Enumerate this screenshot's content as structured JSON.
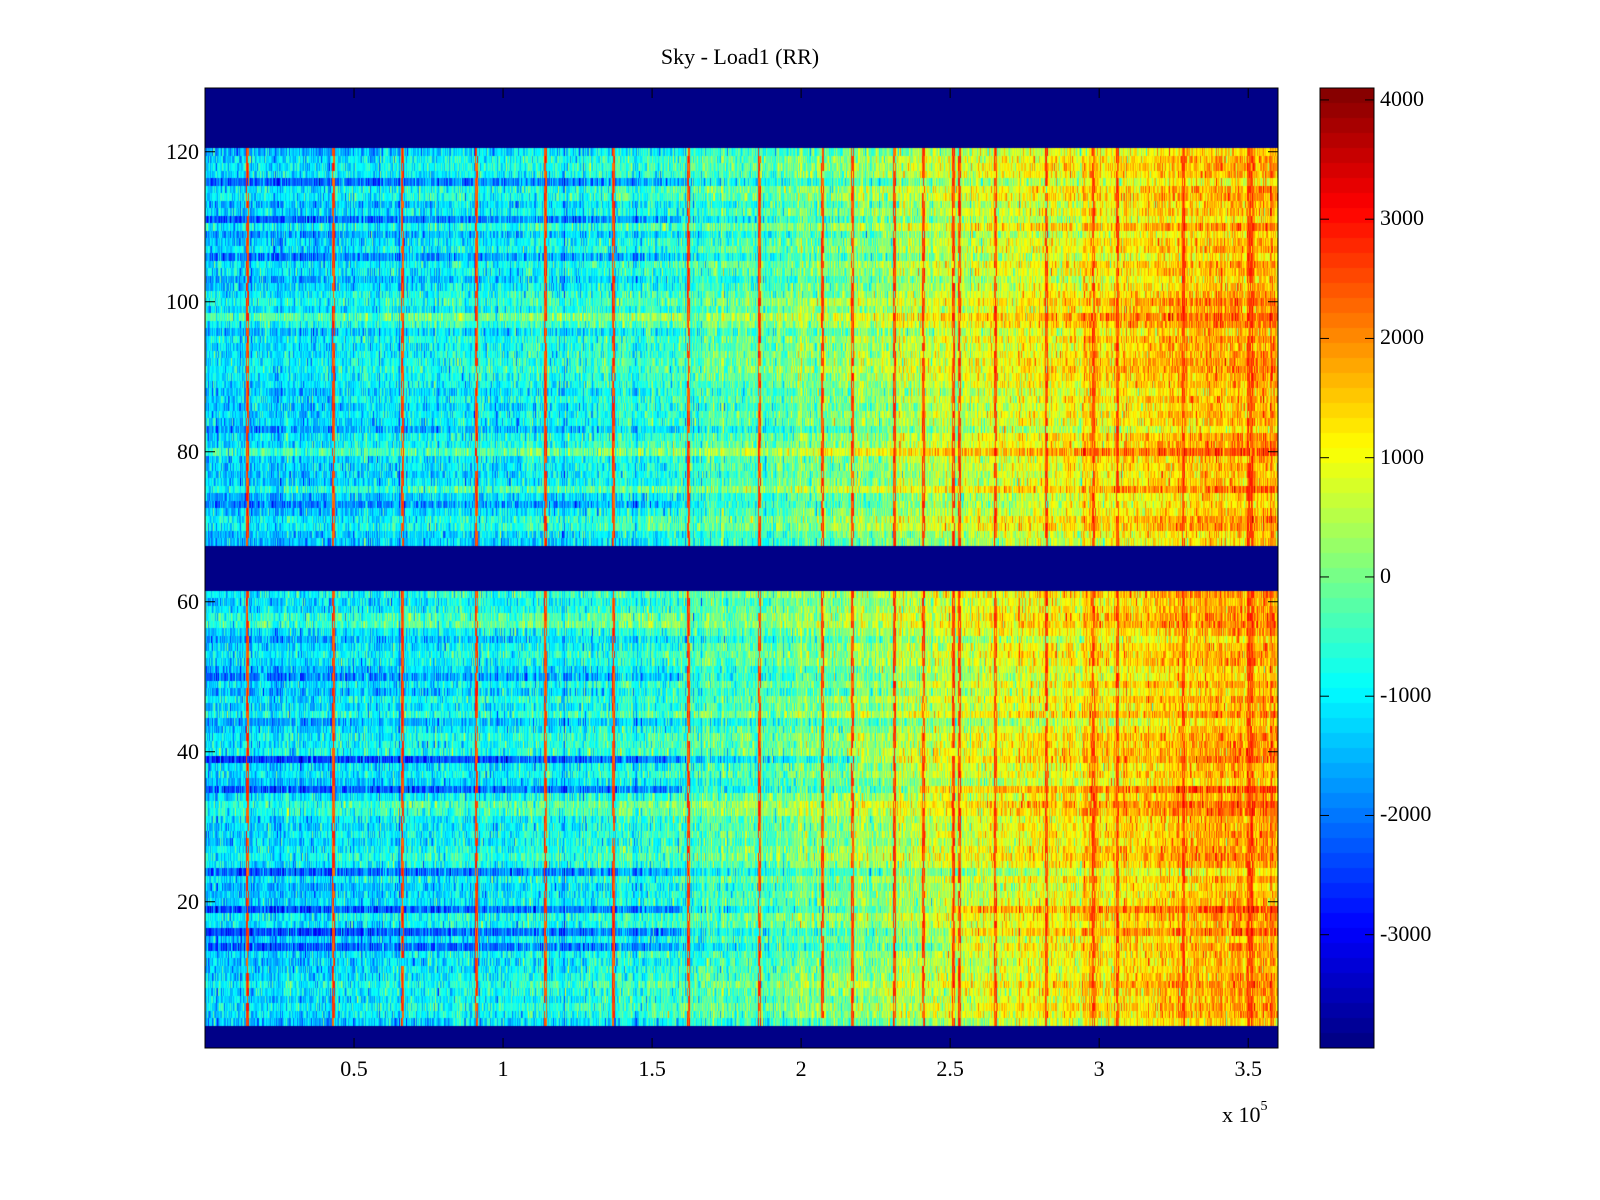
{
  "chart_data": {
    "type": "heatmap",
    "title": "Sky - Load1 (RR)",
    "xlabel": "",
    "ylabel": "",
    "x_multiplier_label": "x 10",
    "x_multiplier_exponent": "5",
    "xlim": [
      0,
      3.6
    ],
    "ylim": [
      0.5,
      128.5
    ],
    "x_ticks": [
      0.5,
      1,
      1.5,
      2,
      2.5,
      3,
      3.5
    ],
    "x_tick_labels": [
      "0.5",
      "1",
      "1.5",
      "2",
      "2.5",
      "3",
      "3.5"
    ],
    "y_ticks": [
      20,
      40,
      60,
      80,
      100,
      120
    ],
    "y_tick_labels": [
      "20",
      "40",
      "60",
      "80",
      "100",
      "120"
    ],
    "colormap": "jet",
    "clim": [
      -3950,
      4100
    ],
    "colorbar_ticks": [
      -3000,
      -2000,
      -1000,
      0,
      1000,
      2000,
      3000,
      4000
    ],
    "colorbar_tick_labels": [
      "-3000",
      "-2000",
      "-1000",
      "0",
      "1000",
      "2000",
      "3000",
      "4000"
    ],
    "rows": 128,
    "empty_row_ranges": [
      [
        1,
        3
      ],
      [
        62,
        67
      ],
      [
        121,
        128
      ]
    ],
    "trend": {
      "description": "value rises roughly linearly along x",
      "x": [
        0,
        1.5,
        2.5,
        3.6
      ],
      "value": [
        -1300,
        -700,
        600,
        1900
      ]
    },
    "stripe_columns_x": [
      0.14,
      0.43,
      0.66,
      0.91,
      1.14,
      1.37,
      1.62,
      1.86,
      2.07,
      2.17,
      2.31,
      2.41,
      2.51,
      2.53,
      2.65,
      2.82,
      2.98,
      3.06,
      3.28,
      3.5,
      3.51
    ],
    "stripe_value": 3000,
    "dark_rows": [
      {
        "row": 16,
        "offset": -1300
      },
      {
        "row": 19,
        "offset": -1500
      },
      {
        "row": 14,
        "offset": -900
      },
      {
        "row": 24,
        "offset": -800
      },
      {
        "row": 35,
        "offset": -1400
      },
      {
        "row": 39,
        "offset": -1100
      },
      {
        "row": 50,
        "offset": -700
      },
      {
        "row": 73,
        "offset": -900
      },
      {
        "row": 106,
        "offset": -700
      },
      {
        "row": 111,
        "offset": -1000
      },
      {
        "row": 116,
        "offset": -700
      }
    ],
    "bright_rows": [
      {
        "row": 57,
        "offset": 700
      },
      {
        "row": 58,
        "offset": 600
      },
      {
        "row": 98,
        "offset": 600
      },
      {
        "row": 101,
        "offset": 300
      }
    ]
  }
}
